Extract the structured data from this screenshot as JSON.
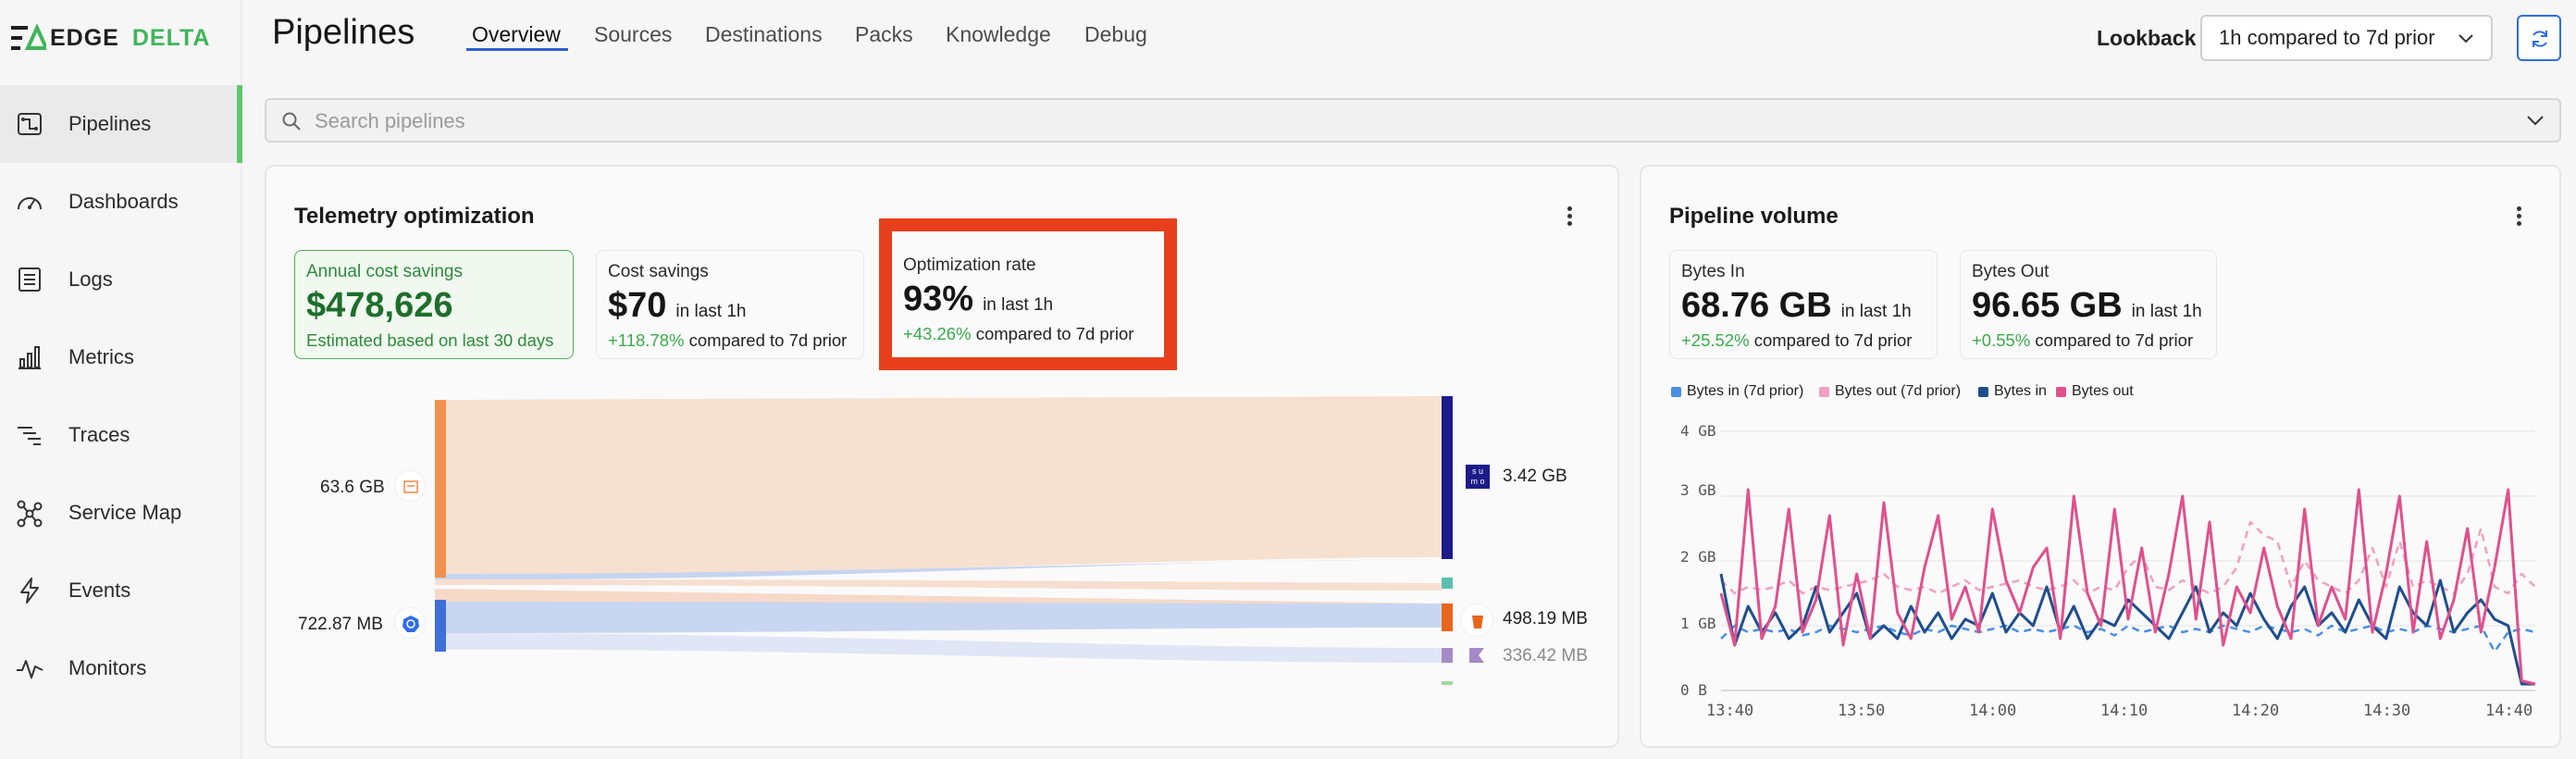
{
  "brand": {
    "logo_left": "EDGE",
    "logo_right": "DELTA",
    "accent": "#3fb55a"
  },
  "sidebar": {
    "items": [
      {
        "label": "Pipelines",
        "icon": "pipelines-icon",
        "active": true
      },
      {
        "label": "Dashboards",
        "icon": "gauge-icon"
      },
      {
        "label": "Logs",
        "icon": "logs-icon"
      },
      {
        "label": "Metrics",
        "icon": "bar-chart-icon"
      },
      {
        "label": "Traces",
        "icon": "traces-icon"
      },
      {
        "label": "Service Map",
        "icon": "service-map-icon"
      },
      {
        "label": "Events",
        "icon": "lightning-icon"
      },
      {
        "label": "Monitors",
        "icon": "pulse-icon"
      }
    ]
  },
  "header": {
    "title": "Pipelines",
    "tabs": [
      {
        "label": "Overview",
        "active": true
      },
      {
        "label": "Sources"
      },
      {
        "label": "Destinations"
      },
      {
        "label": "Packs"
      },
      {
        "label": "Knowledge"
      },
      {
        "label": "Debug"
      }
    ],
    "lookback_label": "Lookback",
    "lookback_value": "1h compared to 7d prior"
  },
  "search": {
    "placeholder": "Search pipelines"
  },
  "telemetry": {
    "title": "Telemetry optimization",
    "annual": {
      "label": "Annual cost savings",
      "value": "$478,626",
      "note": "Estimated based on last 30 days"
    },
    "cost": {
      "label": "Cost savings",
      "value": "$70",
      "unit": "in last 1h",
      "pct": "+118.78%",
      "cmp": "compared to 7d prior"
    },
    "opt": {
      "label": "Optimization rate",
      "value": "93%",
      "unit": "in last 1h",
      "pct": "+43.26%",
      "cmp": "compared to 7d prior",
      "highlight": "#e8401c"
    },
    "flow": {
      "sources": [
        {
          "label": "63.6 GB",
          "icon": "file-source-icon"
        },
        {
          "label": "722.87 MB",
          "icon": "kubernetes-icon"
        }
      ],
      "destinations": [
        {
          "label": "3.42 GB",
          "icon": "sumo-logic-icon"
        },
        {
          "label": "498.19 MB",
          "icon": "s3-bucket-icon"
        },
        {
          "label": "336.42 MB",
          "icon": "edge-delta-icon"
        }
      ]
    }
  },
  "volume": {
    "title": "Pipeline volume",
    "bytes_in": {
      "label": "Bytes In",
      "value": "68.76 GB",
      "unit": "in last 1h",
      "pct": "+25.52%",
      "cmp": "compared to 7d prior"
    },
    "bytes_out": {
      "label": "Bytes Out",
      "value": "96.65 GB",
      "unit": "in last 1h",
      "pct": "+0.55%",
      "cmp": "compared to 7d prior"
    }
  },
  "chart_data": {
    "type": "line",
    "x": [
      "13:40",
      "13:41",
      "13:42",
      "13:43",
      "13:44",
      "13:45",
      "13:46",
      "13:47",
      "13:48",
      "13:49",
      "13:50",
      "13:51",
      "13:52",
      "13:53",
      "13:54",
      "13:55",
      "13:56",
      "13:57",
      "13:58",
      "13:59",
      "14:00",
      "14:01",
      "14:02",
      "14:03",
      "14:04",
      "14:05",
      "14:06",
      "14:07",
      "14:08",
      "14:09",
      "14:10",
      "14:11",
      "14:12",
      "14:13",
      "14:14",
      "14:15",
      "14:16",
      "14:17",
      "14:18",
      "14:19",
      "14:20",
      "14:21",
      "14:22",
      "14:23",
      "14:24",
      "14:25",
      "14:26",
      "14:27",
      "14:28",
      "14:29",
      "14:30",
      "14:31",
      "14:32",
      "14:33",
      "14:34",
      "14:35",
      "14:36",
      "14:37",
      "14:38",
      "14:39",
      "14:40"
    ],
    "xticks": [
      "13:40",
      "13:50",
      "14:00",
      "14:10",
      "14:20",
      "14:30",
      "14:40"
    ],
    "yticks": [
      "0 B",
      "1 GB",
      "2 GB",
      "3 GB",
      "4 GB"
    ],
    "ylim": [
      0,
      4
    ],
    "grid": true,
    "legend_position": "top-left",
    "series": [
      {
        "name": "Bytes in (7d prior)",
        "color": "#4a90e2",
        "style": "dashed",
        "values": [
          0.8,
          1.0,
          0.9,
          0.95,
          0.9,
          0.95,
          0.85,
          0.9,
          1.0,
          0.95,
          0.9,
          0.95,
          1.0,
          0.9,
          0.85,
          0.95,
          0.9,
          1.0,
          0.95,
          0.9,
          0.95,
          1.0,
          0.9,
          0.95,
          0.9,
          0.95,
          1.0,
          0.9,
          0.95,
          0.85,
          1.0,
          0.9,
          0.95,
          1.0,
          0.9,
          0.95,
          0.9,
          1.0,
          0.95,
          0.9,
          1.0,
          0.95,
          0.9,
          0.95,
          0.85,
          1.0,
          0.9,
          0.95,
          1.0,
          0.9,
          0.95,
          0.9,
          1.0,
          0.95,
          0.9,
          0.95,
          1.0,
          0.6,
          0.9,
          0.95,
          0.9
        ]
      },
      {
        "name": "Bytes out (7d prior)",
        "color": "#f0a0c0",
        "style": "dashed",
        "values": [
          1.7,
          1.5,
          1.6,
          1.55,
          1.6,
          1.7,
          1.5,
          1.6,
          1.55,
          1.6,
          1.65,
          1.7,
          1.8,
          1.6,
          1.55,
          1.6,
          1.5,
          1.6,
          1.7,
          1.55,
          1.6,
          1.65,
          1.7,
          1.6,
          1.55,
          1.6,
          1.7,
          1.5,
          1.6,
          1.55,
          1.9,
          2.1,
          1.6,
          1.55,
          1.7,
          1.6,
          1.5,
          1.6,
          1.9,
          2.6,
          2.4,
          2.3,
          1.6,
          2.0,
          1.7,
          1.6,
          1.5,
          1.7,
          2.2,
          1.6,
          2.3,
          1.6,
          1.7,
          1.6,
          1.5,
          1.8,
          2.5,
          1.6,
          1.5,
          1.8,
          1.6
        ]
      },
      {
        "name": "Bytes in",
        "color": "#1f4e8c",
        "style": "solid",
        "values": [
          1.8,
          0.7,
          1.3,
          0.9,
          1.2,
          0.8,
          1.0,
          1.6,
          0.9,
          1.2,
          1.5,
          0.8,
          1.0,
          0.8,
          1.3,
          0.9,
          1.2,
          0.8,
          1.1,
          1.0,
          1.5,
          0.9,
          1.2,
          1.0,
          1.6,
          0.9,
          1.3,
          0.8,
          1.1,
          1.0,
          1.4,
          1.2,
          1.0,
          0.8,
          1.2,
          1.6,
          0.9,
          1.2,
          1.0,
          1.5,
          1.1,
          0.8,
          1.3,
          1.6,
          1.0,
          1.2,
          0.9,
          1.4,
          1.0,
          0.8,
          1.6,
          1.2,
          1.0,
          1.7,
          0.9,
          1.2,
          1.4,
          1.1,
          1.0,
          0.1,
          0.1
        ]
      },
      {
        "name": "Bytes out",
        "color": "#e0508c",
        "style": "solid",
        "values": [
          1.5,
          0.7,
          3.1,
          0.8,
          1.3,
          2.8,
          0.9,
          1.4,
          2.7,
          0.7,
          1.8,
          0.8,
          2.9,
          1.2,
          0.8,
          1.9,
          2.7,
          1.1,
          1.6,
          0.9,
          2.8,
          1.7,
          1.2,
          1.9,
          2.2,
          0.8,
          3.0,
          1.5,
          1.0,
          2.8,
          1.1,
          2.2,
          0.9,
          1.8,
          3.0,
          1.1,
          2.6,
          0.7,
          1.6,
          1.2,
          2.2,
          1.3,
          0.8,
          2.8,
          1.0,
          1.6,
          1.1,
          3.1,
          0.9,
          1.8,
          3.0,
          0.9,
          2.3,
          0.8,
          1.4,
          2.5,
          0.9,
          1.9,
          3.1,
          0.15,
          0.1
        ]
      }
    ]
  }
}
